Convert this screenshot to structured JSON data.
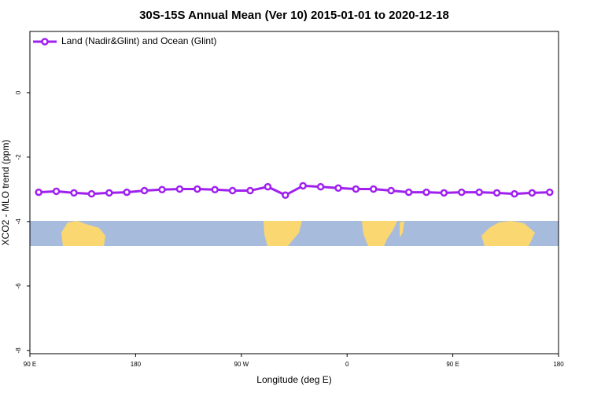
{
  "chart_data": {
    "type": "line",
    "title": "30S-15S Annual Mean (Ver 10)   2015-01-01 to 2020-12-18",
    "x_label": "Longitude (deg E)",
    "y_label": "XCO2 - MLO trend (ppm)",
    "x": [
      97.5,
      112.5,
      127.5,
      142.5,
      157.5,
      172.5,
      187.5,
      202.5,
      217.5,
      232.5,
      247.5,
      262.5,
      277.5,
      292.5,
      307.5,
      322.5,
      337.5,
      352.5,
      367.5,
      382.5,
      397.5,
      412.5,
      427.5,
      442.5,
      457.5,
      472.5,
      487.5,
      502.5,
      517.5,
      532.5
    ],
    "series": [
      {
        "name": "Land (Nadir&Glint) and Ocean (Glint)",
        "color": "#a020f0",
        "values": [
          -3.09,
          -3.06,
          -3.11,
          -3.14,
          -3.11,
          -3.09,
          -3.04,
          -3.01,
          -2.99,
          -2.99,
          -3.01,
          -3.04,
          -3.04,
          -2.92,
          -3.18,
          -2.89,
          -2.92,
          -2.96,
          -2.99,
          -2.99,
          -3.04,
          -3.09,
          -3.09,
          -3.11,
          -3.09,
          -3.09,
          -3.11,
          -3.14,
          -3.11,
          -3.09
        ]
      }
    ],
    "xlim": [
      90,
      540
    ],
    "xticks": [
      {
        "value": 90,
        "label": "90 E"
      },
      {
        "value": 180,
        "label": "180"
      },
      {
        "value": 270,
        "label": "90 W"
      },
      {
        "value": 360,
        "label": "0"
      },
      {
        "value": 450,
        "label": "90 E"
      },
      {
        "value": 540,
        "label": "180"
      }
    ],
    "ylim": [
      -8.1,
      1.9
    ],
    "yticks": [
      0,
      -2,
      -4,
      -6,
      -8
    ],
    "legend": "top-left"
  }
}
